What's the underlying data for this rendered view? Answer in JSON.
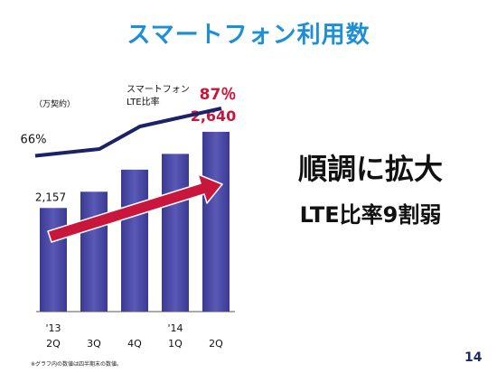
{
  "page": {
    "title": "スマートフォン利用数",
    "headline1": "順調に拡大",
    "headline2": "LTE比率9割弱",
    "footnote": "※グラフ内の数値は四半期末の数値。",
    "page_number": "14"
  },
  "chart_data": {
    "type": "bar",
    "unit_label": "（万契約）",
    "categories": [
      [
        "'13",
        "2Q"
      ],
      [
        "",
        "3Q"
      ],
      [
        "",
        "4Q"
      ],
      [
        "'14",
        "1Q"
      ],
      [
        "",
        "2Q"
      ]
    ],
    "series": [
      {
        "name": "",
        "values": [
          2157,
          2260,
          2400,
          2500,
          2640
        ],
        "value_labels": [
          "2,157",
          "",
          "",
          "",
          "2,640"
        ],
        "color": "#4b4ba6"
      },
      {
        "name": "スマートフォン LTE比率",
        "name_lines": [
          "スマートフォン",
          "LTE比率"
        ],
        "type": "line",
        "values": [
          66,
          69,
          79,
          83,
          87
        ],
        "value_labels": [
          "66%",
          "",
          "",
          "",
          "87％"
        ],
        "color": "#1b2268"
      }
    ],
    "ylim_bars": [
      1500,
      2800
    ],
    "ylim_line": [
      35,
      95
    ],
    "annotation": "growth-arrow",
    "colors": {
      "arrow": "#c8163c",
      "highlight_label": "#c8163c"
    }
  }
}
